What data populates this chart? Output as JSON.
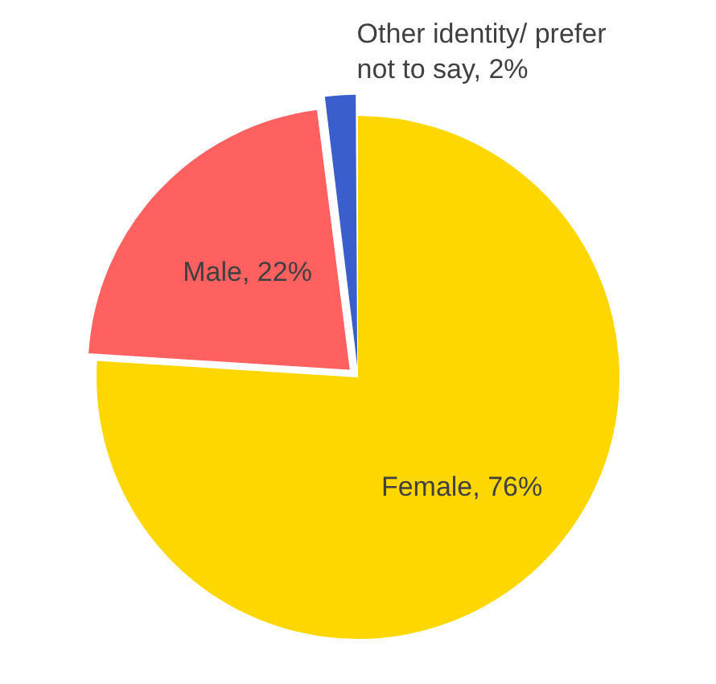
{
  "chart_data": {
    "type": "pie",
    "categories": [
      "Female",
      "Male",
      "Other identity/ prefer not to say"
    ],
    "values": [
      76,
      22,
      2
    ],
    "colors": [
      "#ffd700",
      "#ff6161",
      "#3a5fcd"
    ],
    "value_labels": [
      "76%",
      "22%",
      "2%"
    ]
  }
}
